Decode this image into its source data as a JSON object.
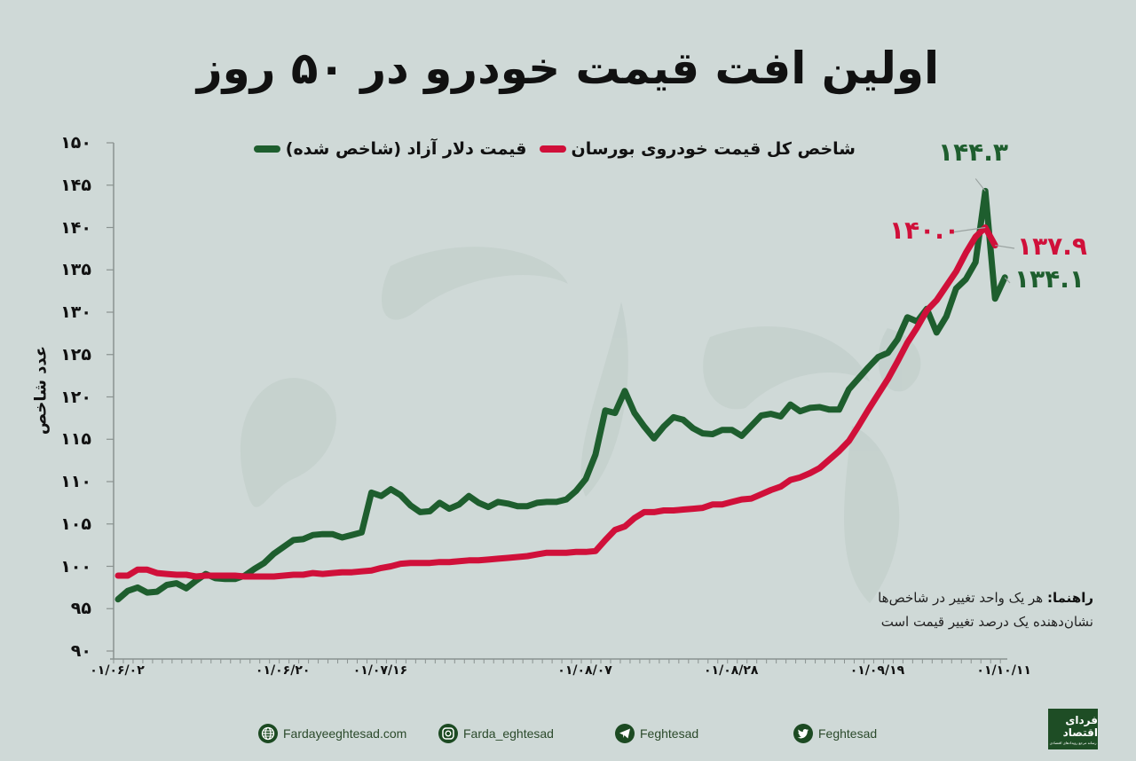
{
  "title": "اولین افت قیمت خودرو در ۵۰ روز",
  "legend": {
    "car_index": "شاخص کل قیمت خودروی بورسان",
    "dollar": "قیمت دلار آزاد (شاخص شده)"
  },
  "colors": {
    "background": "#cfd9d7",
    "dollar": "#1e5e2e",
    "car_index": "#d0103a",
    "axis": "#8a9290",
    "leader": "#9aa2a0"
  },
  "note": {
    "label": "راهنما:",
    "line1": "هر یک واحد تغییر در شاخص‌ها",
    "line2": "نشان‌دهنده یک درصد تغییر قیمت است"
  },
  "footer": {
    "website": "Fardayeeghtesad.com",
    "instagram": "Farda_eghtesad",
    "telegram": "Feghtesad",
    "twitter": "Feghtesad",
    "logo_title": "فردای اقتصاد",
    "logo_subtitle": "رسانه مرجع رویدادهای اقتصادی"
  },
  "chart_data": {
    "type": "line",
    "title": "اولین افت قیمت خودرو در ۵۰ روز",
    "xlabel": "",
    "ylabel": "عدد شاخص",
    "ylim": [
      90,
      150
    ],
    "yticks": [
      90,
      95,
      100,
      105,
      110,
      115,
      120,
      125,
      130,
      135,
      140,
      145,
      150
    ],
    "ytick_labels": [
      "۹۰",
      "۹۵",
      "۱۰۰",
      "۱۰۵",
      "۱۱۰",
      "۱۱۵",
      "۱۲۰",
      "۱۲۵",
      "۱۳۰",
      "۱۳۵",
      "۱۴۰",
      "۱۴۵",
      "۱۵۰"
    ],
    "xtick_labels": [
      "۰۱/۰۶/۰۲",
      "۰۱/۰۶/۲۰",
      "۰۱/۰۷/۱۶",
      "۰۱/۰۸/۰۷",
      "۰۱/۰۸/۲۸",
      "۰۱/۰۹/۱۹",
      "۰۱/۱۰/۱۱"
    ],
    "xtick_positions": [
      0,
      17,
      27,
      48,
      63,
      78,
      91
    ],
    "grid": false,
    "legend_position": "top",
    "series": [
      {
        "name": "قیمت دلار آزاد (شاخص شده)",
        "color": "#1e5e2e",
        "values": [
          96.1,
          97.1,
          97.5,
          96.9,
          97.0,
          97.8,
          98.0,
          97.4,
          98.3,
          99.1,
          98.6,
          98.5,
          98.5,
          98.9,
          99.7,
          100.4,
          101.5,
          102.3,
          103.1,
          103.2,
          103.7,
          103.8,
          103.8,
          103.4,
          103.7,
          104.0,
          108.7,
          108.3,
          109.1,
          108.4,
          107.2,
          106.4,
          106.5,
          107.5,
          106.8,
          107.3,
          108.3,
          107.5,
          107.0,
          107.6,
          107.4,
          107.1,
          107.1,
          107.5,
          107.6,
          107.6,
          107.9,
          108.9,
          110.3,
          113.2,
          118.4,
          118.1,
          120.7,
          118.1,
          116.5,
          115.1,
          116.5,
          117.6,
          117.3,
          116.3,
          115.7,
          115.6,
          116.1,
          116.1,
          115.4,
          116.6,
          117.8,
          118.0,
          117.7,
          119.1,
          118.3,
          118.7,
          118.8,
          118.5,
          118.5,
          120.9,
          122.2,
          123.5,
          124.7,
          125.2,
          126.8,
          129.4,
          128.9,
          130.4,
          127.6,
          129.5,
          132.8,
          133.9,
          135.9,
          144.3,
          131.6,
          134.1
        ]
      },
      {
        "name": "شاخص کل قیمت خودروی بورسان",
        "color": "#d0103a",
        "values": [
          98.9,
          98.9,
          99.6,
          99.6,
          99.2,
          99.1,
          99.0,
          99.0,
          98.8,
          98.9,
          98.9,
          98.9,
          98.9,
          98.8,
          98.8,
          98.8,
          98.8,
          98.9,
          99.0,
          99.0,
          99.2,
          99.1,
          99.2,
          99.3,
          99.3,
          99.4,
          99.5,
          99.8,
          100.0,
          100.3,
          100.4,
          100.4,
          100.4,
          100.5,
          100.5,
          100.6,
          100.7,
          100.7,
          100.8,
          100.9,
          101.0,
          101.1,
          101.2,
          101.4,
          101.6,
          101.6,
          101.6,
          101.7,
          101.7,
          101.8,
          103.1,
          104.3,
          104.7,
          105.7,
          106.4,
          106.4,
          106.6,
          106.6,
          106.7,
          106.8,
          106.9,
          107.3,
          107.3,
          107.6,
          107.9,
          108.0,
          108.5,
          109.0,
          109.4,
          110.2,
          110.5,
          111.0,
          111.6,
          112.6,
          113.6,
          114.8,
          116.6,
          118.5,
          120.3,
          122.1,
          124.2,
          126.4,
          128.2,
          130.2,
          131.4,
          133.1,
          134.8,
          137.0,
          138.9,
          140.0,
          137.9
        ]
      }
    ],
    "annotations": [
      {
        "text": "۱۴۴.۳",
        "series": "dollar",
        "value": 144.3
      },
      {
        "text": "۱۳۴.۱",
        "series": "dollar",
        "value": 134.1
      },
      {
        "text": "۱۴۰.۰",
        "series": "car_index",
        "value": 140.0
      },
      {
        "text": "۱۳۷.۹",
        "series": "car_index",
        "value": 137.9
      }
    ]
  }
}
